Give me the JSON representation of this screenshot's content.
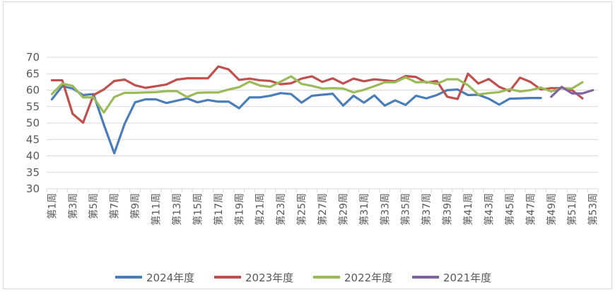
{
  "chart_data": {
    "type": "line",
    "title": "",
    "xlabel": "",
    "ylabel": "",
    "ylim": [
      30,
      70
    ],
    "yticks": [
      30,
      35,
      40,
      45,
      50,
      55,
      60,
      65,
      70
    ],
    "grid": true,
    "legend_position": "bottom",
    "categories": [
      "第1周",
      "第2周",
      "第3周",
      "第4周",
      "第5周",
      "第6周",
      "第7周",
      "第8周",
      "第9周",
      "第10周",
      "第11周",
      "第12周",
      "第13周",
      "第14周",
      "第15周",
      "第16周",
      "第17周",
      "第18周",
      "第19周",
      "第20周",
      "第21周",
      "第22周",
      "第23周",
      "第24周",
      "第25周",
      "第26周",
      "第27周",
      "第28周",
      "第29周",
      "第30周",
      "第31周",
      "第32周",
      "第33周",
      "第34周",
      "第35周",
      "第36周",
      "第37周",
      "第38周",
      "第39周",
      "第40周",
      "第41周",
      "第42周",
      "第43周",
      "第44周",
      "第45周",
      "第46周",
      "第47周",
      "第48周",
      "第49周",
      "第50周",
      "第51周",
      "第52周",
      "第53周"
    ],
    "xtick_labels": [
      "第1周",
      "第3周",
      "第5周",
      "第7周",
      "第9周",
      "第11周",
      "第13周",
      "第15周",
      "第17周",
      "第19周",
      "第21周",
      "第23周",
      "第25周",
      "第27周",
      "第29周",
      "第31周",
      "第33周",
      "第35周",
      "第37周",
      "第39周",
      "第41周",
      "第43周",
      "第45周",
      "第47周",
      "第49周",
      "第51周",
      "第53周"
    ],
    "series": [
      {
        "name": "2024年度",
        "color": "#4a7ebb",
        "values": [
          57.2,
          61.2,
          60.5,
          58.5,
          58.8,
          49.5,
          40.8,
          49.8,
          56.3,
          57.2,
          57.2,
          56.1,
          56.8,
          57.5,
          56.3,
          57.0,
          56.5,
          56.5,
          54.5,
          57.8,
          57.8,
          58.3,
          59.1,
          58.8,
          56.2,
          58.3,
          58.6,
          58.9,
          55.3,
          58.3,
          56.2,
          58.4,
          55.3,
          56.9,
          55.5,
          58.3,
          57.5,
          58.5,
          60.0,
          60.2,
          58.5,
          58.6,
          57.4,
          55.6,
          57.4,
          57.5,
          57.6,
          57.6,
          null,
          null,
          null,
          null,
          null
        ]
      },
      {
        "name": "2023年度",
        "color": "#c0504d",
        "values": [
          63.0,
          63.0,
          52.8,
          50.1,
          58.5,
          60.2,
          62.8,
          63.2,
          61.5,
          60.7,
          61.2,
          61.7,
          63.2,
          63.6,
          63.6,
          63.6,
          67.2,
          66.3,
          63.1,
          63.5,
          63.0,
          62.8,
          61.8,
          62.1,
          63.5,
          64.2,
          62.5,
          63.6,
          62.0,
          63.5,
          62.7,
          63.3,
          63.0,
          62.7,
          64.3,
          64.0,
          62.3,
          62.8,
          58.0,
          57.3,
          65.0,
          62.0,
          63.4,
          61.0,
          59.7,
          63.8,
          62.5,
          60.2,
          60.6,
          60.6,
          60.0,
          57.5,
          null
        ]
      },
      {
        "name": "2022年度",
        "color": "#9bbb59",
        "values": [
          58.8,
          62.0,
          61.3,
          57.8,
          57.8,
          53.2,
          57.9,
          59.2,
          59.2,
          59.3,
          59.4,
          59.7,
          59.7,
          57.9,
          59.2,
          59.3,
          59.3,
          60.2,
          60.9,
          62.6,
          61.4,
          61.0,
          62.6,
          64.2,
          61.9,
          61.3,
          60.5,
          60.6,
          60.5,
          59.3,
          60.1,
          61.2,
          62.4,
          62.4,
          63.9,
          62.4,
          62.5,
          61.9,
          63.3,
          63.3,
          61.5,
          58.7,
          59.1,
          59.4,
          60.3,
          59.6,
          60.0,
          60.8,
          59.6,
          60.6,
          60.5,
          62.4,
          null
        ]
      },
      {
        "name": "2021年度",
        "color": "#8064a2",
        "values": [
          null,
          null,
          null,
          null,
          null,
          null,
          null,
          null,
          null,
          null,
          null,
          null,
          null,
          null,
          null,
          null,
          null,
          null,
          null,
          null,
          null,
          null,
          null,
          null,
          null,
          null,
          null,
          null,
          null,
          null,
          null,
          null,
          null,
          null,
          null,
          null,
          null,
          null,
          null,
          null,
          null,
          null,
          null,
          null,
          null,
          null,
          null,
          null,
          58.0,
          61.0,
          59.0,
          59.0,
          60.0
        ]
      }
    ]
  }
}
